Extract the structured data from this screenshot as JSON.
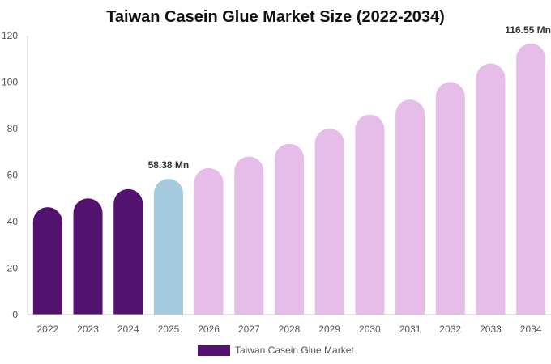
{
  "chart_data": {
    "type": "bar",
    "title": "Taiwan Casein Glue Market Size (2022-2034)",
    "categories": [
      "2022",
      "2023",
      "2024",
      "2025",
      "2026",
      "2027",
      "2028",
      "2029",
      "2030",
      "2031",
      "2032",
      "2033",
      "2034"
    ],
    "series": [
      {
        "name": "Taiwan Casein Glue Market",
        "values": [
          46.2,
          50.0,
          54.0,
          58.38,
          63.0,
          68.0,
          73.5,
          80.0,
          86.0,
          92.5,
          100.0,
          108.0,
          116.55
        ]
      }
    ],
    "data_labels": [
      {
        "index": 3,
        "text": "58.38 Mn"
      },
      {
        "index": 12,
        "text": "116.55 Mn"
      }
    ],
    "y_ticks": [
      "0",
      "20",
      "40",
      "60",
      "80",
      "100",
      "120"
    ],
    "ylim": [
      0,
      120
    ],
    "grid": false,
    "legend_position": "bottom",
    "colors": {
      "historical": "#541270",
      "current": "#a3cadf",
      "forecast": "#e6bde9",
      "legend_swatch": "#541270"
    },
    "bar_color_groups": [
      "historical",
      "historical",
      "historical",
      "current",
      "forecast",
      "forecast",
      "forecast",
      "forecast",
      "forecast",
      "forecast",
      "forecast",
      "forecast",
      "forecast"
    ]
  }
}
